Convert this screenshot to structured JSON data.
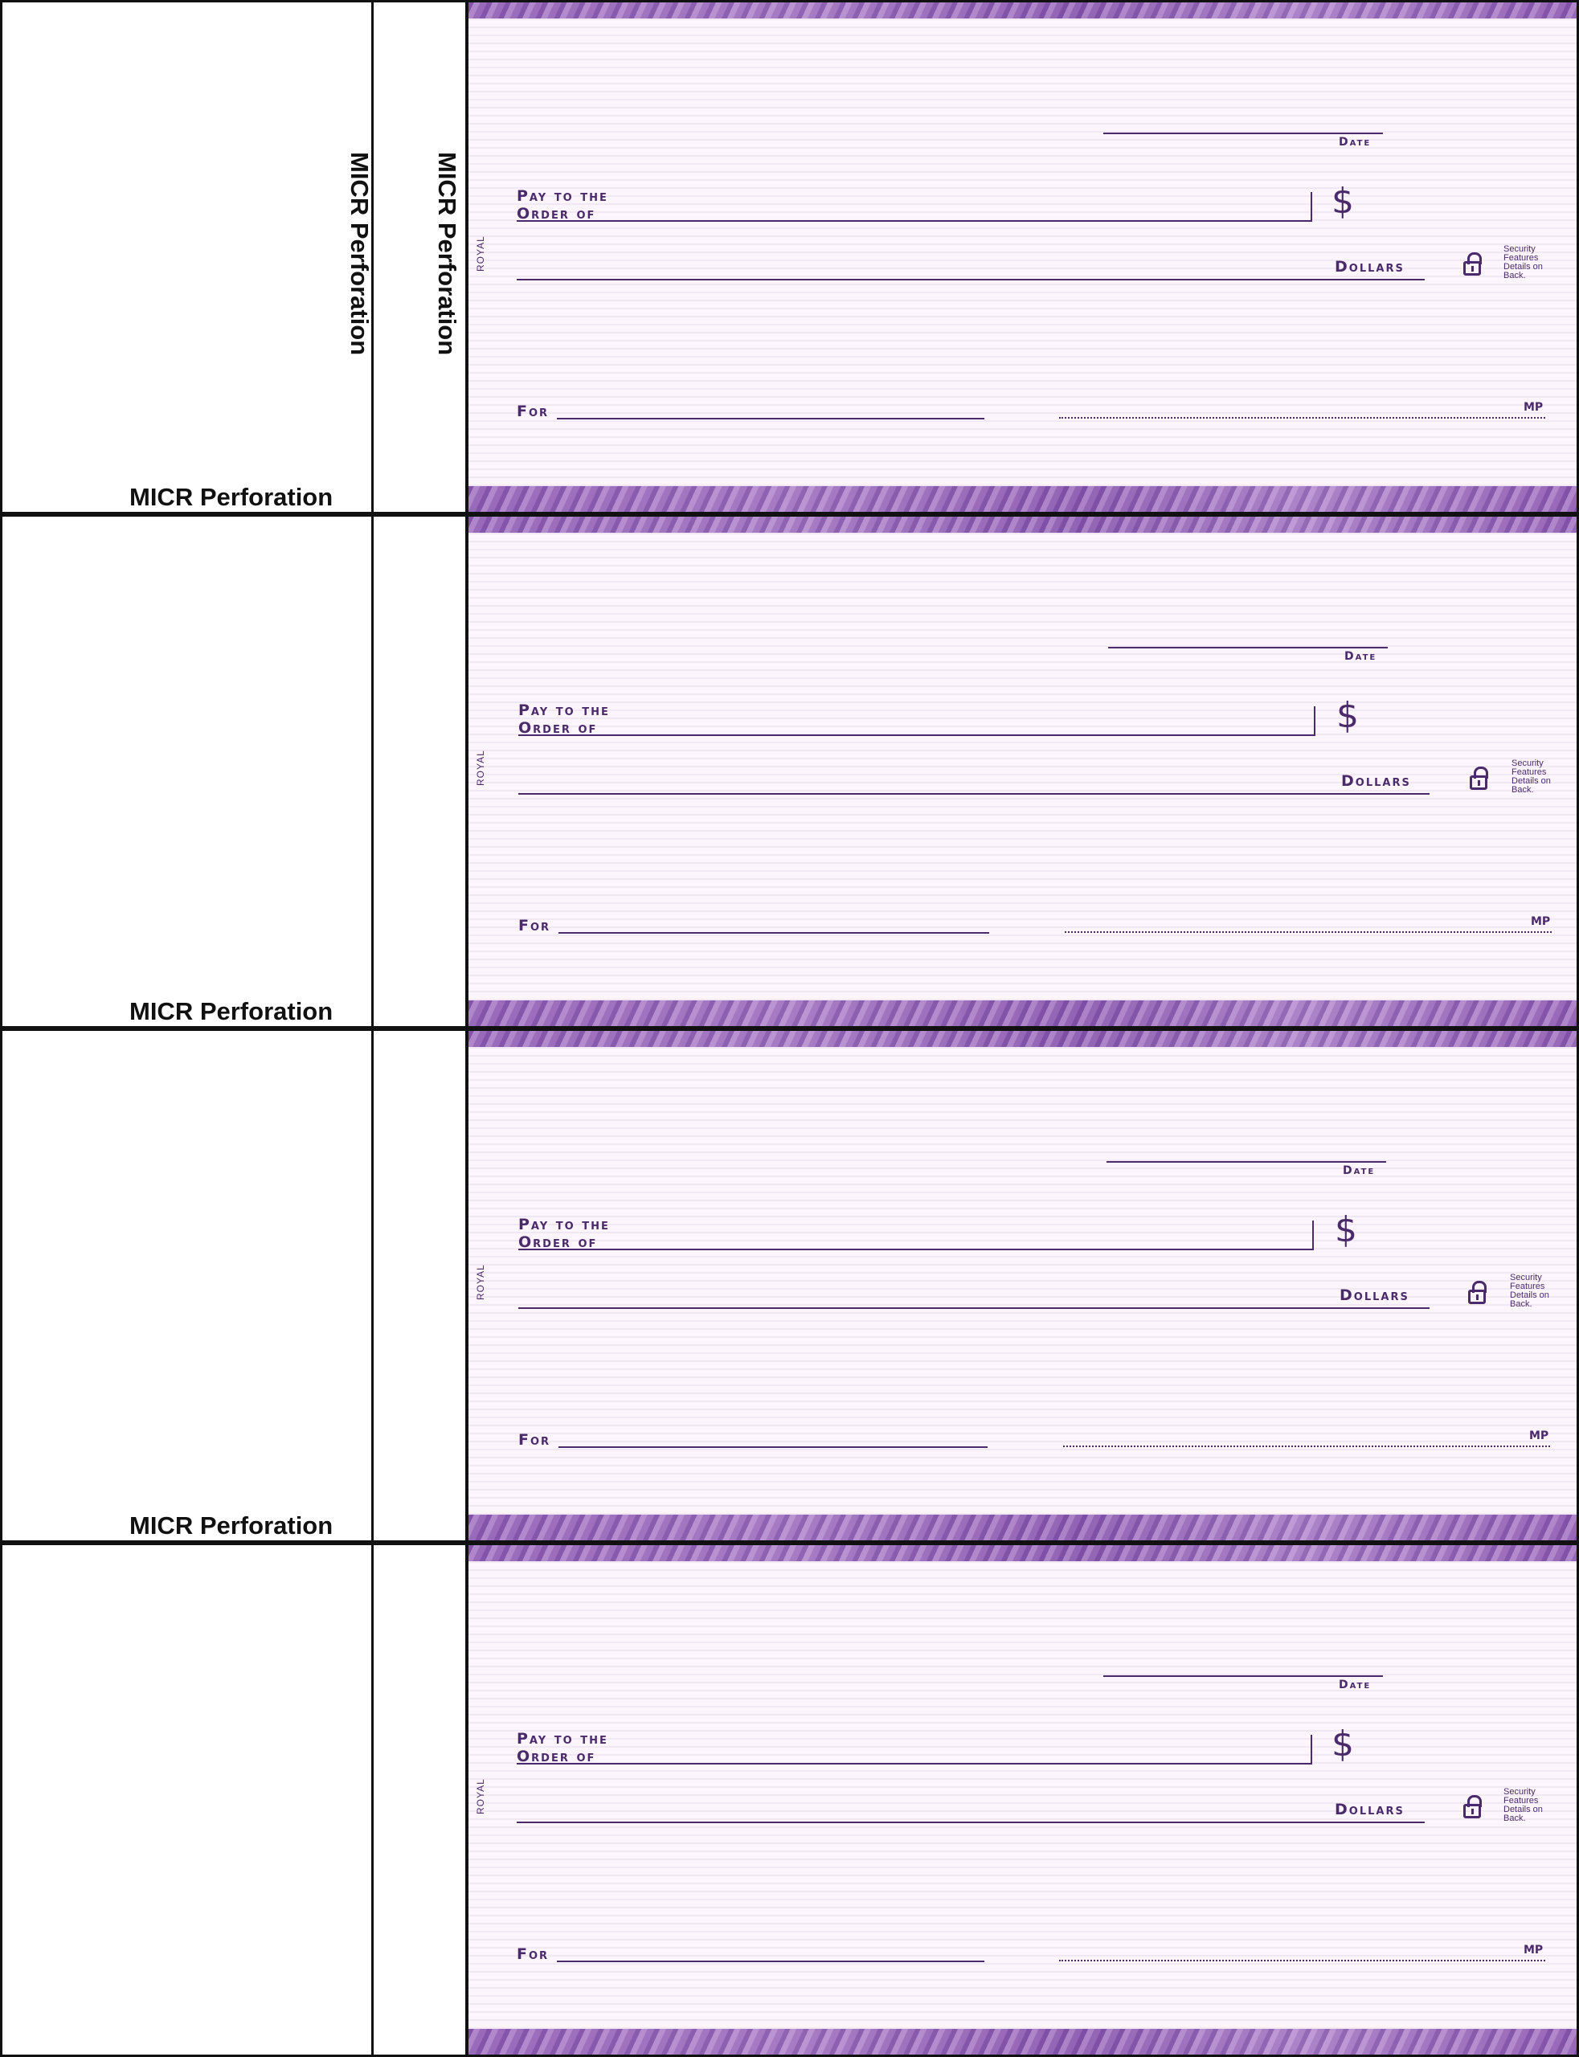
{
  "micr": {
    "label": "MICR Perforation"
  },
  "check": {
    "date_label": "Date",
    "pay_to_line1": "Pay to the",
    "pay_to_line2": "Order of",
    "dollar_sign": "$",
    "dollars_label": "Dollars",
    "for_label": "For",
    "royal": "ROYAL",
    "security_text": "Security Features Details on Back.",
    "mp_mark": "MP"
  },
  "colors": {
    "ink": "#4a2a6a",
    "band": "#9b6fc0",
    "border": "#111111"
  }
}
